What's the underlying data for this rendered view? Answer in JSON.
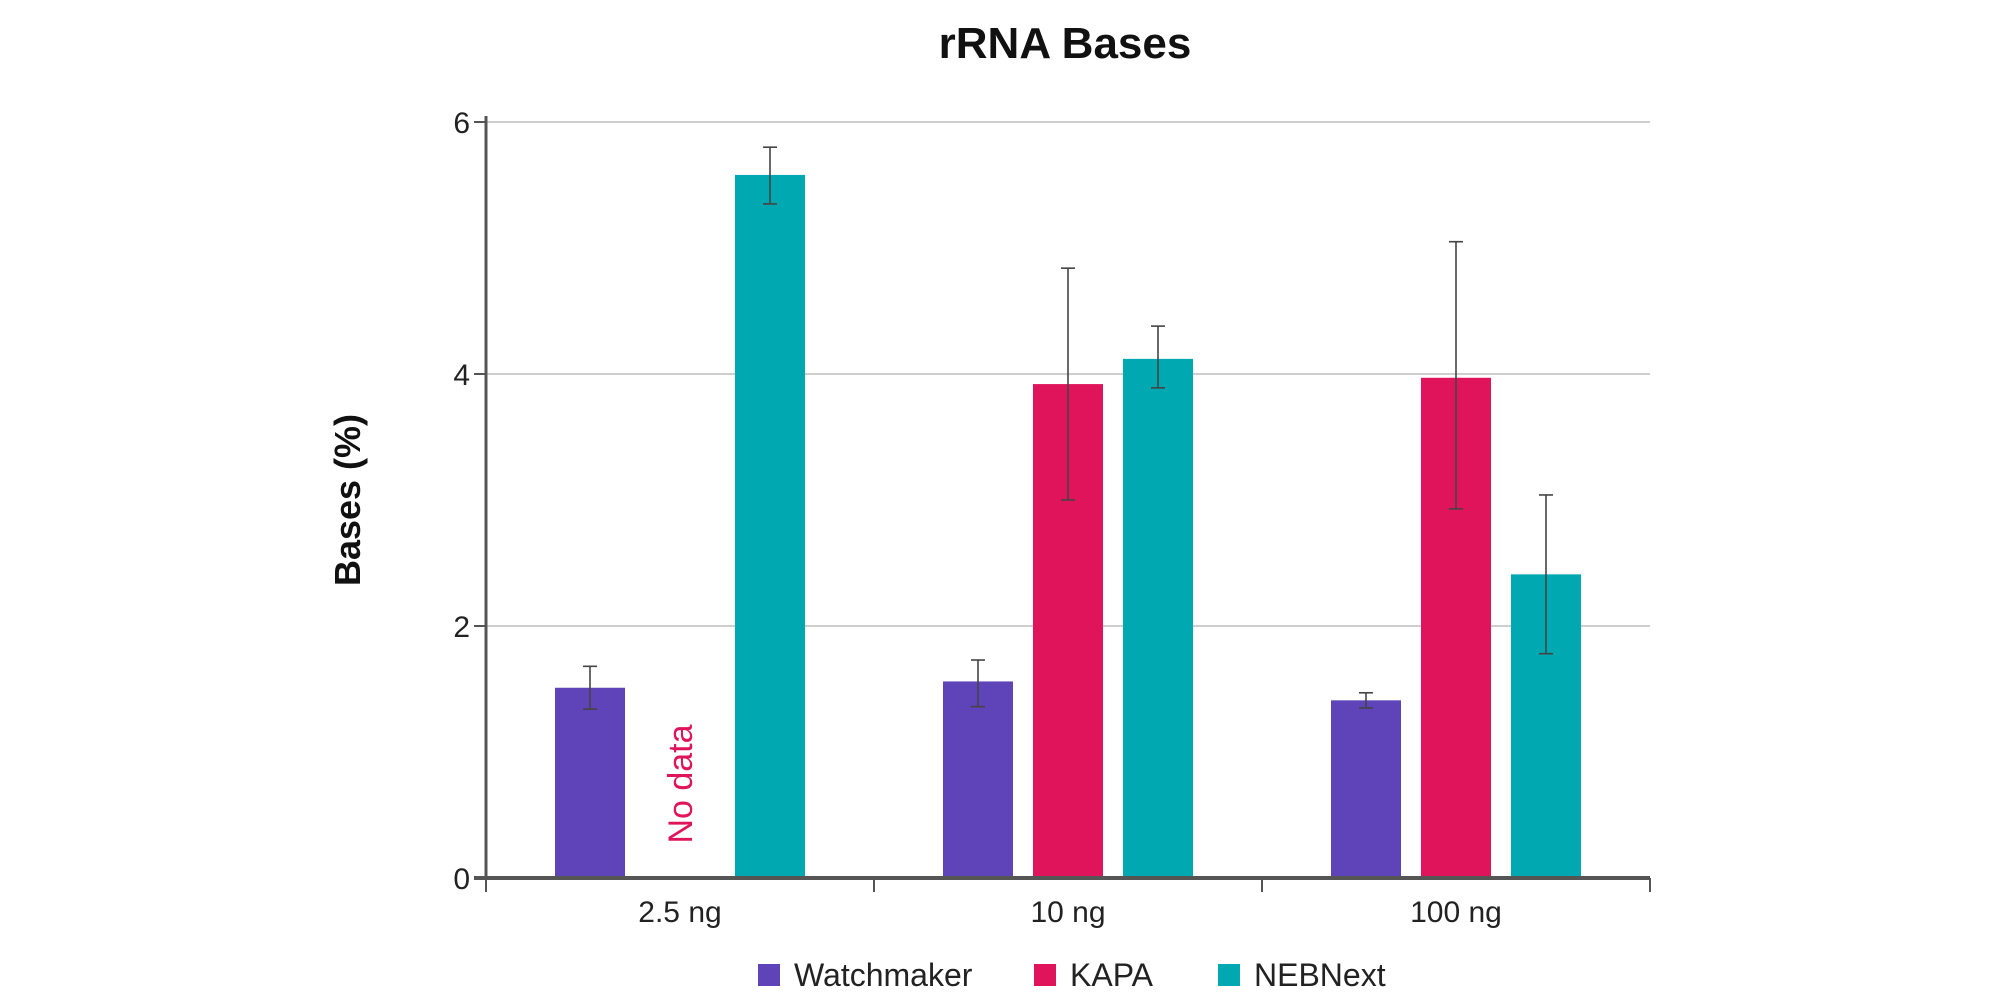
{
  "chart_data": {
    "type": "bar",
    "title": "rRNA Bases",
    "xlabel": "",
    "ylabel": "Bases (%)",
    "ylim": [
      0,
      6
    ],
    "yticks": [
      0,
      2,
      4,
      6
    ],
    "grid": true,
    "categories": [
      "2.5 ng",
      "10 ng",
      "100 ng"
    ],
    "series": [
      {
        "name": "Watchmaker",
        "color": "#5e44b8",
        "values": [
          1.51,
          1.56,
          1.41
        ],
        "err_low": [
          1.34,
          1.36,
          1.35
        ],
        "err_high": [
          1.68,
          1.73,
          1.47
        ]
      },
      {
        "name": "KAPA",
        "color": "#e0145a",
        "values": [
          null,
          3.92,
          3.97
        ],
        "err_low": [
          null,
          3.0,
          2.93
        ],
        "err_high": [
          null,
          4.84,
          5.05
        ]
      },
      {
        "name": "NEBNext",
        "color": "#00a9b1",
        "values": [
          5.58,
          4.12,
          2.41
        ],
        "err_low": [
          5.35,
          3.89,
          1.78
        ],
        "err_high": [
          5.8,
          4.38,
          3.04
        ]
      }
    ],
    "annotations": [
      {
        "text": "No data",
        "category": "2.5 ng",
        "series": "KAPA",
        "color": "#e0145a"
      }
    ],
    "legend": {
      "position": "bottom"
    }
  }
}
